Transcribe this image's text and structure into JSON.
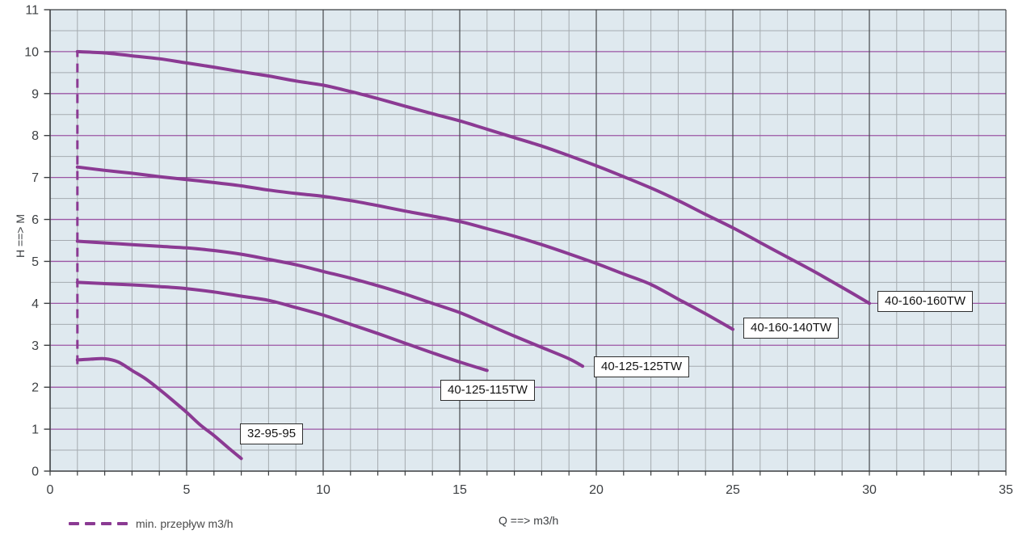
{
  "chart_data": {
    "type": "line",
    "title": "",
    "xlabel": "Q ==> m3/h",
    "ylabel": "H ==> M",
    "xlim": [
      0,
      35
    ],
    "ylim": [
      0,
      11
    ],
    "x_ticks": [
      0,
      5,
      10,
      15,
      20,
      25,
      30,
      35
    ],
    "y_ticks": [
      0,
      1,
      2,
      3,
      4,
      5,
      6,
      7,
      8,
      9,
      10,
      11
    ],
    "x_minor_step": 1,
    "y_minor_step": 0.5,
    "grid": "on",
    "legend_position": "bottom-left",
    "legend": [
      {
        "label": "min. przepływ m3/h",
        "style": "dashed"
      }
    ],
    "min_flow_line": {
      "x": 1,
      "h_from": 2.55,
      "h_to": 10.02
    },
    "series": [
      {
        "label": "32-95-95",
        "points": [
          [
            1,
            2.65
          ],
          [
            1.5,
            2.67
          ],
          [
            2,
            2.68
          ],
          [
            2.5,
            2.6
          ],
          [
            3,
            2.4
          ],
          [
            3.5,
            2.2
          ],
          [
            4,
            1.95
          ],
          [
            4.5,
            1.68
          ],
          [
            5,
            1.4
          ],
          [
            5.5,
            1.1
          ],
          [
            6,
            0.85
          ],
          [
            6.5,
            0.57
          ],
          [
            7,
            0.3
          ]
        ]
      },
      {
        "label": "40-125-115TW",
        "points": [
          [
            1,
            4.5
          ],
          [
            2,
            4.47
          ],
          [
            3,
            4.44
          ],
          [
            4,
            4.4
          ],
          [
            5,
            4.35
          ],
          [
            6,
            4.27
          ],
          [
            7,
            4.17
          ],
          [
            8,
            4.07
          ],
          [
            9,
            3.9
          ],
          [
            10,
            3.72
          ],
          [
            11,
            3.5
          ],
          [
            12,
            3.28
          ],
          [
            13,
            3.05
          ],
          [
            14,
            2.82
          ],
          [
            15,
            2.6
          ],
          [
            16,
            2.4
          ]
        ]
      },
      {
        "label": "40-125-125TW",
        "points": [
          [
            1,
            5.48
          ],
          [
            2,
            5.44
          ],
          [
            3,
            5.4
          ],
          [
            4,
            5.36
          ],
          [
            5,
            5.32
          ],
          [
            6,
            5.26
          ],
          [
            7,
            5.17
          ],
          [
            8,
            5.05
          ],
          [
            9,
            4.92
          ],
          [
            10,
            4.76
          ],
          [
            11,
            4.6
          ],
          [
            12,
            4.42
          ],
          [
            13,
            4.22
          ],
          [
            14,
            4.0
          ],
          [
            15,
            3.78
          ],
          [
            16,
            3.5
          ],
          [
            17,
            3.22
          ],
          [
            18,
            2.95
          ],
          [
            19,
            2.68
          ],
          [
            19.5,
            2.5
          ]
        ]
      },
      {
        "label": "40-160-140TW",
        "points": [
          [
            1,
            7.25
          ],
          [
            2,
            7.17
          ],
          [
            3,
            7.1
          ],
          [
            4,
            7.02
          ],
          [
            5,
            6.95
          ],
          [
            6,
            6.88
          ],
          [
            7,
            6.8
          ],
          [
            8,
            6.7
          ],
          [
            9,
            6.62
          ],
          [
            10,
            6.55
          ],
          [
            11,
            6.45
          ],
          [
            12,
            6.33
          ],
          [
            13,
            6.2
          ],
          [
            14,
            6.08
          ],
          [
            15,
            5.95
          ],
          [
            16,
            5.78
          ],
          [
            17,
            5.6
          ],
          [
            18,
            5.4
          ],
          [
            19,
            5.18
          ],
          [
            20,
            4.95
          ],
          [
            21,
            4.7
          ],
          [
            22,
            4.45
          ],
          [
            23,
            4.1
          ],
          [
            24,
            3.75
          ],
          [
            25,
            3.38
          ]
        ]
      },
      {
        "label": "40-160-160TW",
        "points": [
          [
            1,
            10.0
          ],
          [
            2,
            9.97
          ],
          [
            3,
            9.9
          ],
          [
            4,
            9.83
          ],
          [
            5,
            9.73
          ],
          [
            6,
            9.63
          ],
          [
            7,
            9.52
          ],
          [
            8,
            9.42
          ],
          [
            9,
            9.3
          ],
          [
            10,
            9.2
          ],
          [
            11,
            9.05
          ],
          [
            12,
            8.88
          ],
          [
            13,
            8.7
          ],
          [
            14,
            8.52
          ],
          [
            15,
            8.35
          ],
          [
            16,
            8.15
          ],
          [
            17,
            7.95
          ],
          [
            18,
            7.75
          ],
          [
            19,
            7.52
          ],
          [
            20,
            7.28
          ],
          [
            21,
            7.02
          ],
          [
            22,
            6.75
          ],
          [
            23,
            6.45
          ],
          [
            24,
            6.12
          ],
          [
            25,
            5.8
          ],
          [
            26,
            5.45
          ],
          [
            27,
            5.1
          ],
          [
            28,
            4.75
          ],
          [
            29,
            4.38
          ],
          [
            30,
            4.0
          ]
        ]
      }
    ],
    "colors": {
      "curve": "#8b3a93",
      "grid_minor": "#a5abb0",
      "grid_integer_h": "#9b55a4",
      "grid_major_v": "#46494c",
      "frame": "#3b3e40",
      "plot_bg": "#dfe9ef",
      "tick_text": "#3d4043"
    }
  }
}
